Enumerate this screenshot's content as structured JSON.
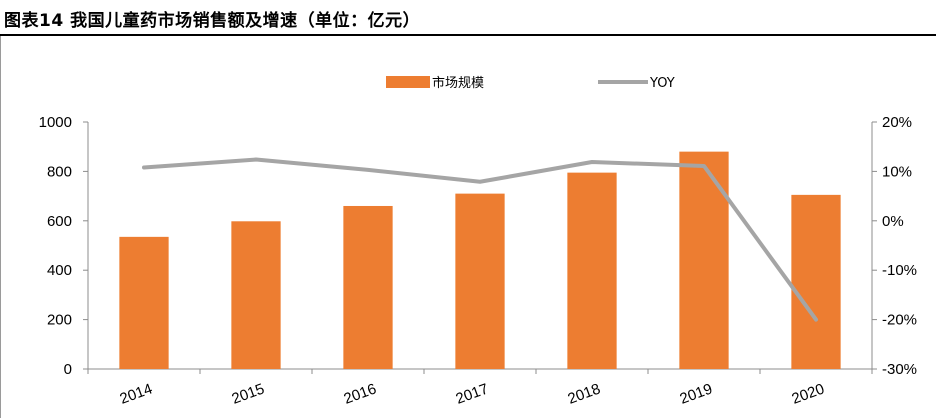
{
  "header": {
    "title": "图表14   我国儿童药市场销售额及增速（单位：亿元）"
  },
  "chart_data": {
    "type": "bar",
    "categories": [
      "2014",
      "2015",
      "2016",
      "2017",
      "2018",
      "2019",
      "2020"
    ],
    "series": [
      {
        "name": "市场规模",
        "type": "bar",
        "axis": "left",
        "color": "#ED7D31",
        "values": [
          535,
          598,
          660,
          710,
          795,
          880,
          705
        ]
      },
      {
        "name": "YOY",
        "type": "line",
        "axis": "right",
        "color": "#A5A5A5",
        "values": [
          10.8,
          12.4,
          10.3,
          7.9,
          11.9,
          11.1,
          -20.0
        ]
      }
    ],
    "ylim_left": [
      0,
      1000
    ],
    "yticks_left": [
      0,
      200,
      400,
      600,
      800,
      1000
    ],
    "ylim_right": [
      -30,
      20
    ],
    "yticks_right": [
      "20%",
      "10%",
      "0%",
      "-10%",
      "-20%",
      "-30%"
    ],
    "legend_position": "top-center",
    "grid": false,
    "xlabel": "",
    "ylabel": ""
  }
}
